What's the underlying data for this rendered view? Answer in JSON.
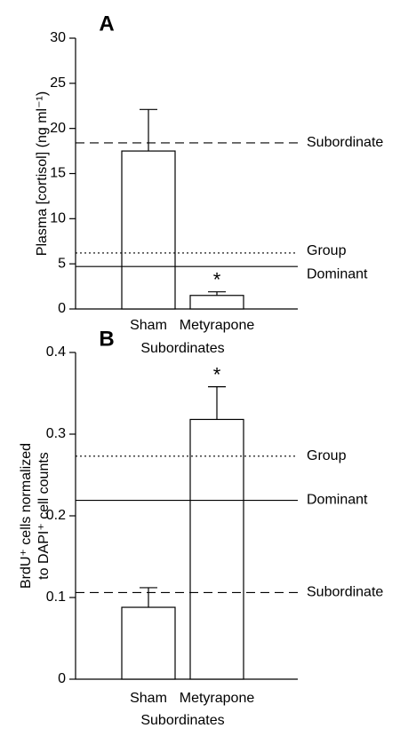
{
  "chart_data": [
    {
      "type": "bar",
      "title": "A",
      "ylabel": [
        "Plasma [cortisol] (ng ml⁻¹)"
      ],
      "xlabel": "Subordinates",
      "categories": [
        "Sham",
        "Metyrapone"
      ],
      "values": [
        17.5,
        1.5
      ],
      "errors": [
        4.6,
        0.4
      ],
      "value_annotations": [
        null,
        "*"
      ],
      "ylim": [
        0,
        30
      ],
      "yticks": [
        0,
        5,
        10,
        15,
        20,
        25,
        30
      ],
      "color": "#ffffff",
      "reference_lines": [
        {
          "name": "Subordinate",
          "value": 18.4,
          "style": "dashed"
        },
        {
          "name": "Group",
          "value": 6.2,
          "style": "dotted"
        },
        {
          "name": "Dominant",
          "value": 4.7,
          "style": "solid"
        }
      ]
    },
    {
      "type": "bar",
      "title": "B",
      "ylabel": [
        "BrdU⁺ cells normalized",
        "to DAPI⁺ cell counts"
      ],
      "xlabel": "Subordinates",
      "categories": [
        "Sham",
        "Metyrapone"
      ],
      "values": [
        0.088,
        0.318
      ],
      "errors": [
        0.024,
        0.04
      ],
      "value_annotations": [
        null,
        "*"
      ],
      "ylim": [
        0,
        0.4
      ],
      "yticks": [
        0,
        0.1,
        0.2,
        0.3,
        0.4
      ],
      "color": "#ffffff",
      "reference_lines": [
        {
          "name": "Group",
          "value": 0.273,
          "style": "dotted"
        },
        {
          "name": "Dominant",
          "value": 0.219,
          "style": "solid"
        },
        {
          "name": "Subordinate",
          "value": 0.106,
          "style": "dashed"
        }
      ]
    }
  ]
}
